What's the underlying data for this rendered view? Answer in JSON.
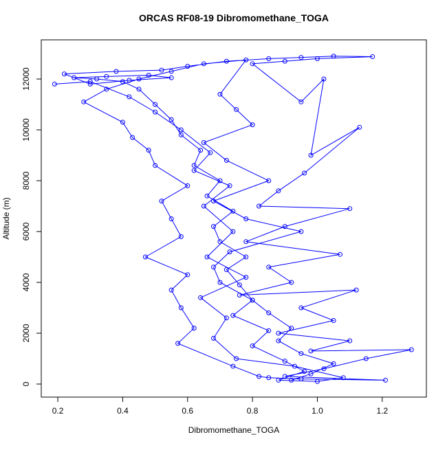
{
  "chart_data": {
    "type": "line",
    "title": "ORCAS RF08-19 Dibromomethane_TOGA",
    "x_label": "Dibromomethane_TOGA",
    "y_label": "Altitude (m)",
    "xlim": [
      0.149,
      1.336
    ],
    "ylim": [
      -514,
      13541
    ],
    "xticks": [
      0.2,
      0.4,
      0.6,
      0.8,
      {
        "value": 1,
        "label": "1.0"
      },
      1.2
    ],
    "yticks": [
      0,
      2000,
      4000,
      6000,
      8000,
      10000,
      12000
    ],
    "grid": false,
    "series": [
      {
        "color": "#0000ff",
        "x": [
          0.92,
          0.98,
          1.05,
          0.95,
          0.88,
          0.92,
          0.85,
          0.8,
          0.76,
          0.72,
          0.78,
          0.7,
          0.68,
          0.74,
          0.66,
          0.7,
          0.62,
          0.64,
          0.58,
          0.55,
          0.5,
          0.45,
          0.4,
          0.32,
          0.25,
          0.35,
          0.48,
          0.55,
          0.42,
          0.3,
          0.22,
          0.38,
          0.52,
          0.6,
          0.72,
          0.85,
          0.95,
          1.05,
          1.17,
          1.0,
          0.9,
          0.8,
          0.95,
          1.02,
          0.98,
          1.13,
          0.96,
          0.88,
          0.82,
          1.1,
          0.9,
          0.78,
          1.07,
          0.85,
          0.92,
          0.76,
          1.12,
          0.95,
          1.05,
          0.88,
          1.1,
          0.98,
          1.29,
          1.15,
          1.02,
          0.9,
          1.21,
          0.95,
          0.85,
          0.82,
          0.74,
          0.57,
          0.62,
          0.58,
          0.55,
          0.6,
          0.47,
          0.58,
          0.55,
          0.52,
          0.6,
          0.5,
          0.48,
          0.43,
          0.4,
          0.28,
          0.35,
          0.45,
          0.55,
          0.65,
          0.78,
          0.7,
          0.75,
          0.8,
          0.65,
          0.72,
          0.85,
          0.68,
          0.78,
          0.95,
          0.73,
          0.68,
          0.7,
          0.8,
          0.74,
          0.85,
          0.8,
          0.9,
          0.96,
          0.88,
          1.0,
          1.08,
          0.93,
          0.75,
          0.68,
          0.72,
          0.64,
          0.78,
          0.66,
          0.74,
          0.65,
          0.73,
          0.62,
          0.67,
          0.58,
          0.5,
          0.42,
          0.3,
          0.19
        ],
        "values": [
          150,
          400,
          800,
          1200,
          1700,
          2200,
          2800,
          3300,
          3900,
          4500,
          5000,
          5600,
          6200,
          6800,
          7400,
          8000,
          8600,
          9200,
          9800,
          10400,
          11000,
          11600,
          11900,
          12000,
          12050,
          12100,
          12150,
          12050,
          11950,
          11800,
          12200,
          12300,
          12350,
          12500,
          12700,
          12800,
          12850,
          12900,
          12880,
          12800,
          12700,
          12600,
          11100,
          12000,
          9000,
          10100,
          8300,
          7600,
          7000,
          6900,
          6200,
          5600,
          5100,
          4600,
          4000,
          3500,
          3700,
          3000,
          2500,
          2000,
          1700,
          1300,
          1350,
          1000,
          600,
          300,
          150,
          200,
          250,
          300,
          700,
          1600,
          2200,
          3000,
          3700,
          4300,
          5000,
          5800,
          6500,
          7200,
          7800,
          8600,
          9200,
          9700,
          10300,
          11100,
          11600,
          12000,
          12300,
          12600,
          12750,
          11400,
          10800,
          10200,
          9500,
          8800,
          8000,
          7200,
          6500,
          6000,
          5200,
          4600,
          4000,
          3300,
          2700,
          2100,
          1500,
          900,
          500,
          150,
          100,
          250,
          700,
          1000,
          1800,
          2600,
          3400,
          4200,
          5000,
          6000,
          7000,
          7800,
          8400,
          9100,
          10000,
          10700,
          11300,
          11900,
          11800
        ]
      }
    ]
  }
}
